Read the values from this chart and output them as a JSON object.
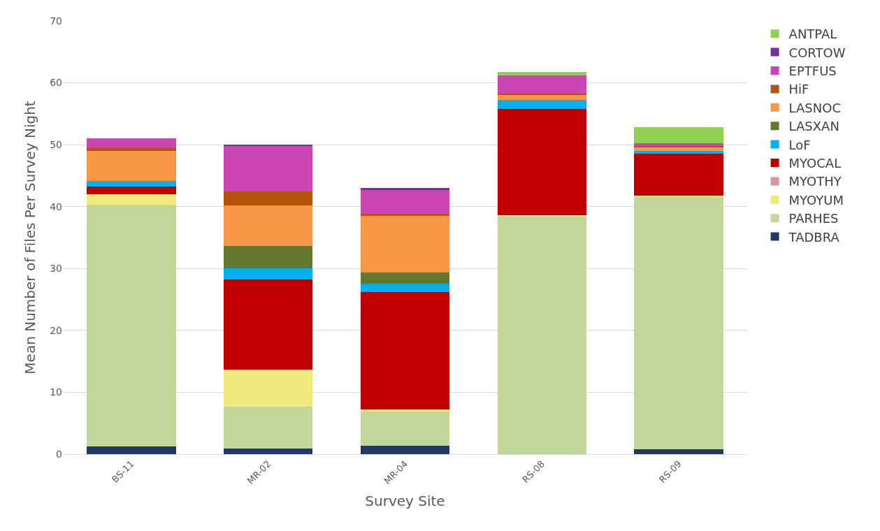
{
  "chart_data": {
    "type": "bar",
    "stacked": true,
    "xlabel": "Survey Site",
    "ylabel": "Mean Number of Files Per Survey Night",
    "categories": [
      "BS-11",
      "MR-02",
      "MR-04",
      "RS-08",
      "RS-09"
    ],
    "ylim": [
      0,
      70
    ],
    "yticks": [
      0,
      10,
      20,
      30,
      40,
      50,
      60,
      70
    ],
    "grid": "y",
    "legend": "right",
    "series": [
      {
        "name": "TADBRA",
        "color": "#1f3864",
        "values": [
          1.2,
          0.9,
          1.4,
          0,
          0.8
        ]
      },
      {
        "name": "PARHES",
        "color": "#c4d79b",
        "values": [
          39.1,
          6.8,
          5.5,
          38.4,
          40.8
        ]
      },
      {
        "name": "MYOYUM",
        "color": "#f0e97e",
        "values": [
          1.7,
          6.0,
          0.3,
          0.2,
          0.2
        ]
      },
      {
        "name": "MYOTHY",
        "color": "#da9694",
        "values": [
          0,
          0,
          0,
          0,
          0
        ]
      },
      {
        "name": "MYOCAL",
        "color": "#c00000",
        "values": [
          1.2,
          14.5,
          19.0,
          17.2,
          6.8
        ]
      },
      {
        "name": "LoF",
        "color": "#00b0f0",
        "values": [
          1.0,
          1.8,
          1.3,
          1.4,
          0.4
        ]
      },
      {
        "name": "LASXAN",
        "color": "#62782f",
        "values": [
          0,
          3.6,
          1.9,
          0,
          0
        ]
      },
      {
        "name": "LASNOC",
        "color": "#f79646",
        "values": [
          4.8,
          6.6,
          9.1,
          0.9,
          0.6
        ]
      },
      {
        "name": "HiF",
        "color": "#b45309",
        "values": [
          0.5,
          2.2,
          0.3,
          0.2,
          0.2
        ]
      },
      {
        "name": "EPTFUS",
        "color": "#cc46b3",
        "values": [
          1.5,
          7.4,
          3.9,
          2.9,
          0.4
        ]
      },
      {
        "name": "CORTOW",
        "color": "#7030a0",
        "values": [
          0,
          0.2,
          0.3,
          0,
          0
        ]
      },
      {
        "name": "ANTPAL",
        "color": "#92d050",
        "values": [
          0,
          0,
          0,
          0.6,
          2.6
        ]
      }
    ]
  }
}
